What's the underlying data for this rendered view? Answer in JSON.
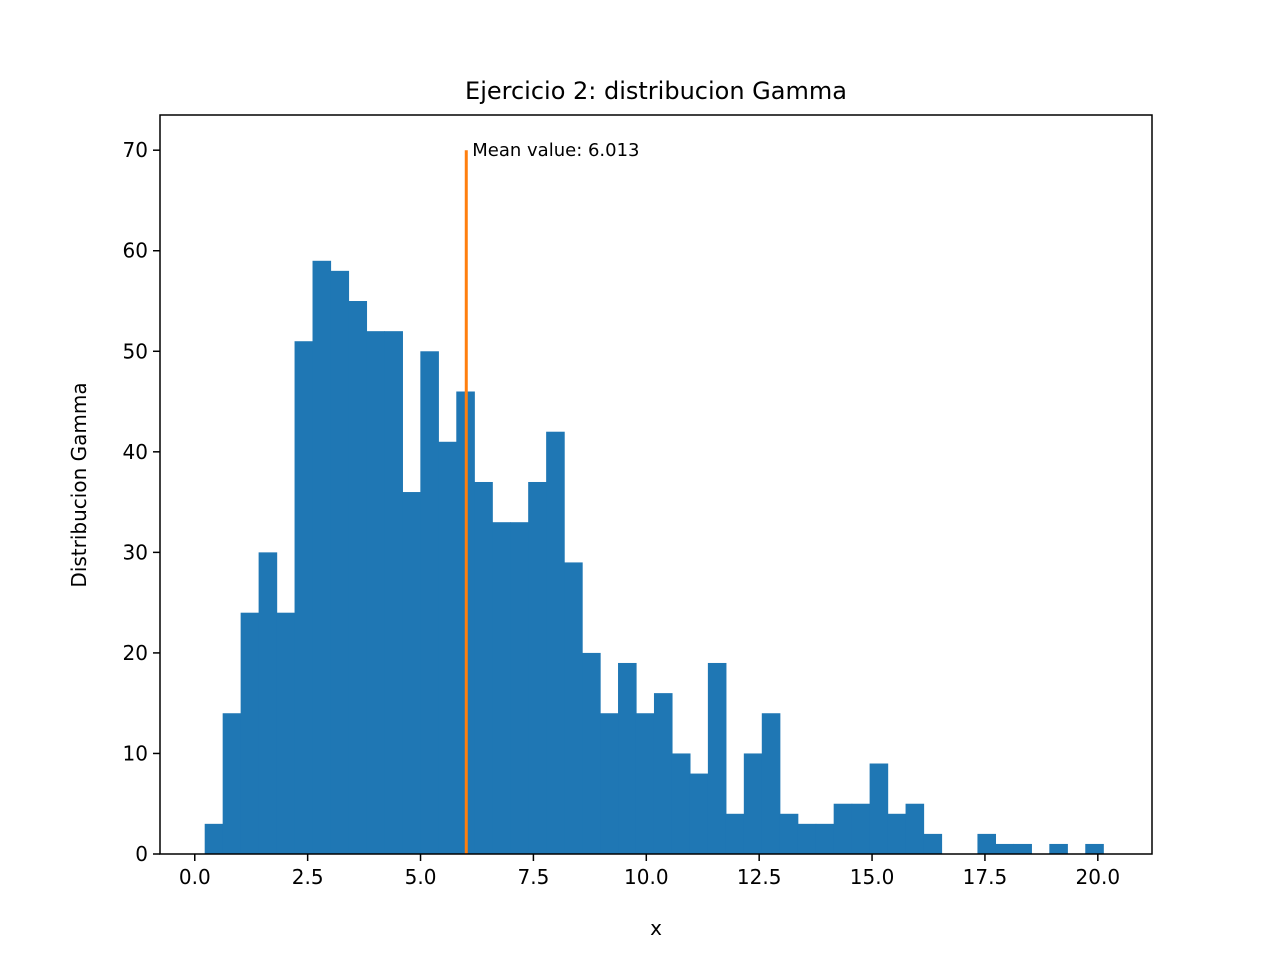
{
  "chart_data": {
    "type": "bar",
    "title": "Ejercicio 2: distribucion Gamma",
    "xlabel": "x",
    "ylabel": "Distribucion Gamma",
    "xlim": [
      -0.77,
      21.2
    ],
    "ylim": [
      0,
      73.5
    ],
    "xticks": [
      {
        "value": 0.0,
        "label": "0.0"
      },
      {
        "value": 2.5,
        "label": "2.5"
      },
      {
        "value": 5.0,
        "label": "5.0"
      },
      {
        "value": 7.5,
        "label": "7.5"
      },
      {
        "value": 10.0,
        "label": "10.0"
      },
      {
        "value": 12.5,
        "label": "12.5"
      },
      {
        "value": 15.0,
        "label": "15.0"
      },
      {
        "value": 17.5,
        "label": "17.5"
      },
      {
        "value": 20.0,
        "label": "20.0"
      }
    ],
    "yticks": [
      {
        "value": 0,
        "label": "0"
      },
      {
        "value": 10,
        "label": "10"
      },
      {
        "value": 20,
        "label": "20"
      },
      {
        "value": 30,
        "label": "30"
      },
      {
        "value": 40,
        "label": "40"
      },
      {
        "value": 50,
        "label": "50"
      },
      {
        "value": 60,
        "label": "60"
      },
      {
        "value": 70,
        "label": "70"
      }
    ],
    "bins": {
      "start": 0.22,
      "width": 0.398
    },
    "counts": [
      3,
      14,
      24,
      30,
      24,
      51,
      59,
      58,
      55,
      52,
      52,
      36,
      50,
      41,
      46,
      37,
      33,
      33,
      37,
      42,
      29,
      20,
      14,
      19,
      14,
      16,
      10,
      8,
      19,
      4,
      10,
      14,
      4,
      3,
      3,
      5,
      5,
      9,
      4,
      5,
      2,
      0,
      0,
      2,
      1,
      1,
      0,
      1,
      0,
      1
    ],
    "bar_color": "#1f77b4",
    "mean_line": {
      "x": 6.013,
      "y_top": 70,
      "color": "#ff7f0e",
      "label": "Mean value: 6.013"
    },
    "grid": false,
    "legend": "none"
  }
}
